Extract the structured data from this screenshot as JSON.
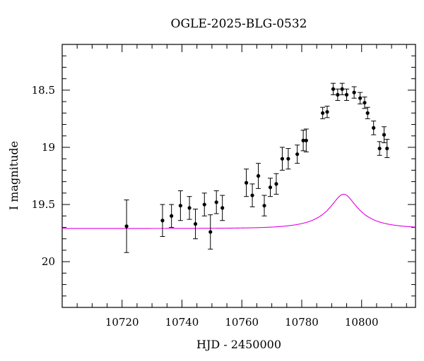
{
  "chart_data": {
    "type": "scatter",
    "title": "OGLE-2025-BLG-0532",
    "xlabel": "HJD - 2450000",
    "ylabel": "I magnitude",
    "xlim": [
      10700,
      10818
    ],
    "ylim": [
      20.4,
      18.1
    ],
    "y_inverted": true,
    "grid": false,
    "x_ticks": [
      10720,
      10740,
      10760,
      10780,
      10800
    ],
    "y_ticks": [
      18.5,
      19,
      19.5,
      20
    ],
    "y_tick_labels": [
      "18.5",
      "19",
      "19.5",
      "20"
    ],
    "colors": {
      "points": "#000000",
      "model": "#e000e0"
    },
    "series": [
      {
        "type": "scatter_with_errorbars",
        "points": [
          {
            "x": 10721.5,
            "y": 19.69,
            "err": 0.23
          },
          {
            "x": 10733.5,
            "y": 19.64,
            "err": 0.14
          },
          {
            "x": 10736.5,
            "y": 19.6,
            "err": 0.1
          },
          {
            "x": 10739.5,
            "y": 19.51,
            "err": 0.13
          },
          {
            "x": 10742.5,
            "y": 19.53,
            "err": 0.1
          },
          {
            "x": 10744.5,
            "y": 19.67,
            "err": 0.13
          },
          {
            "x": 10747.5,
            "y": 19.5,
            "err": 0.1
          },
          {
            "x": 10749.5,
            "y": 19.74,
            "err": 0.15
          },
          {
            "x": 10751.5,
            "y": 19.48,
            "err": 0.1
          },
          {
            "x": 10753.5,
            "y": 19.53,
            "err": 0.11
          },
          {
            "x": 10761.5,
            "y": 19.31,
            "err": 0.12
          },
          {
            "x": 10763.5,
            "y": 19.42,
            "err": 0.1
          },
          {
            "x": 10765.5,
            "y": 19.25,
            "err": 0.11
          },
          {
            "x": 10767.5,
            "y": 19.51,
            "err": 0.09
          },
          {
            "x": 10769.5,
            "y": 19.35,
            "err": 0.08
          },
          {
            "x": 10771.5,
            "y": 19.32,
            "err": 0.09
          },
          {
            "x": 10773.5,
            "y": 19.1,
            "err": 0.1
          },
          {
            "x": 10775.5,
            "y": 19.1,
            "err": 0.09
          },
          {
            "x": 10778.5,
            "y": 19.06,
            "err": 0.08
          },
          {
            "x": 10780.5,
            "y": 18.94,
            "err": 0.09
          },
          {
            "x": 10781.5,
            "y": 18.94,
            "err": 0.1
          },
          {
            "x": 10787.0,
            "y": 18.7,
            "err": 0.05
          },
          {
            "x": 10788.5,
            "y": 18.69,
            "err": 0.05
          },
          {
            "x": 10790.5,
            "y": 18.49,
            "err": 0.05
          },
          {
            "x": 10792.0,
            "y": 18.54,
            "err": 0.05
          },
          {
            "x": 10793.5,
            "y": 18.49,
            "err": 0.05
          },
          {
            "x": 10795.0,
            "y": 18.54,
            "err": 0.05
          },
          {
            "x": 10797.5,
            "y": 18.52,
            "err": 0.05
          },
          {
            "x": 10799.5,
            "y": 18.57,
            "err": 0.05
          },
          {
            "x": 10801.0,
            "y": 18.61,
            "err": 0.05
          },
          {
            "x": 10802.0,
            "y": 18.7,
            "err": 0.05
          },
          {
            "x": 10804.0,
            "y": 18.83,
            "err": 0.06
          },
          {
            "x": 10806.0,
            "y": 19.01,
            "err": 0.06
          },
          {
            "x": 10807.5,
            "y": 18.89,
            "err": 0.07
          },
          {
            "x": 10808.5,
            "y": 19.01,
            "err": 0.08
          }
        ]
      },
      {
        "type": "line",
        "model": {
          "t0": 10794.0,
          "tE": 14.0,
          "u0": 0.3,
          "Ibase": 19.71,
          "fs": 0.13,
          "x_range": [
            10700,
            10818
          ]
        }
      }
    ]
  }
}
